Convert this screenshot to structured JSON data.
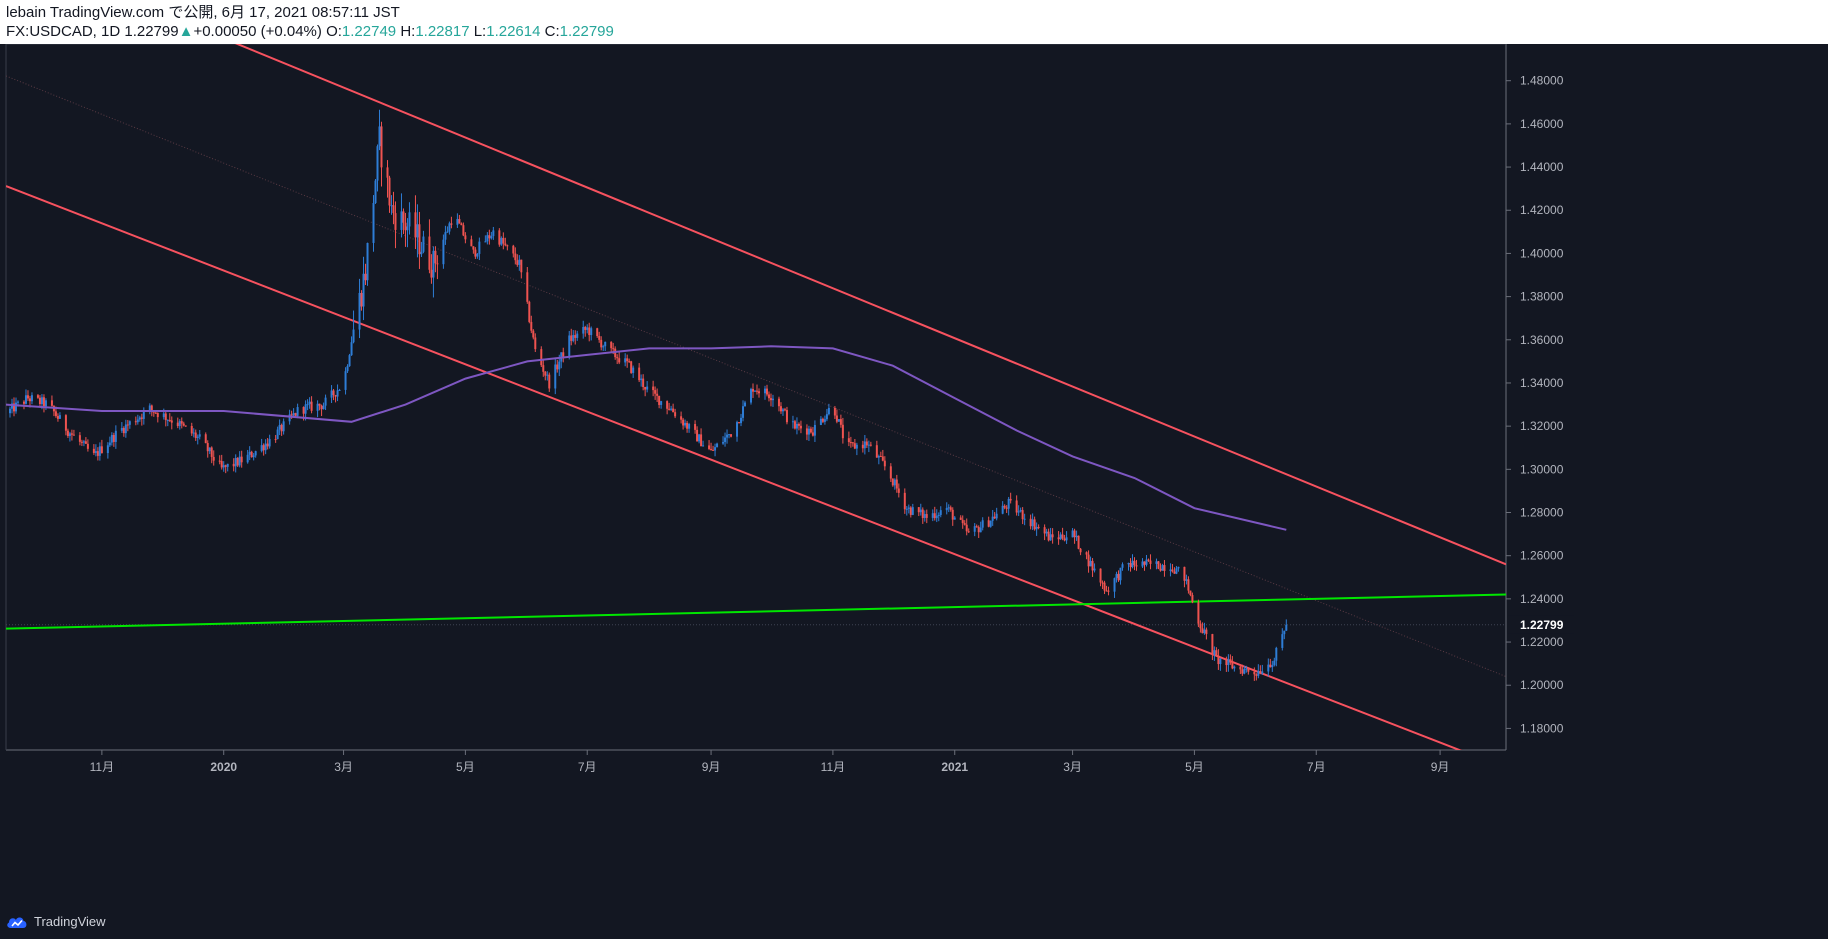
{
  "header": {
    "line1": "lebain TradingView.com で公開, 6月 17, 2021 08:57:11 JST",
    "symbol": "FX:USDCAD, 1D",
    "last": "1.22799",
    "change": "+0.00050 (+0.04%)",
    "o_label": "O:",
    "o": "1.22749",
    "h_label": "H:",
    "h": "1.22817",
    "l_label": "L:",
    "l": "1.22614",
    "c_label": "C:",
    "c": "1.22799"
  },
  "footer": {
    "brand": "TradingView"
  },
  "colors": {
    "up": "#2e7dd6",
    "down": "#ef5350",
    "channel": "#f7525f",
    "ma": "#7e57c2",
    "support": "#00e600",
    "bg": "#131722"
  },
  "chart_data": {
    "type": "candlestick",
    "y_ticks": [
      "1.48000",
      "1.46000",
      "1.44000",
      "1.42000",
      "1.40000",
      "1.38000",
      "1.36000",
      "1.34000",
      "1.32000",
      "1.30000",
      "1.28000",
      "1.26000",
      "1.24000",
      "1.22000",
      "1.20000",
      "1.18000"
    ],
    "y_range": [
      1.17,
      1.497
    ],
    "x_range": [
      "2019-09-14",
      "2021-10-04"
    ],
    "x_ticks": [
      {
        "label": "11月",
        "date": "2019-11-01"
      },
      {
        "label": "2020",
        "date": "2020-01-01"
      },
      {
        "label": "3月",
        "date": "2020-03-01"
      },
      {
        "label": "5月",
        "date": "2020-05-01"
      },
      {
        "label": "7月",
        "date": "2020-07-01"
      },
      {
        "label": "9月",
        "date": "2020-09-01"
      },
      {
        "label": "11月",
        "date": "2020-11-01"
      },
      {
        "label": "2021",
        "date": "2021-01-01"
      },
      {
        "label": "3月",
        "date": "2021-03-01"
      },
      {
        "label": "5月",
        "date": "2021-05-01"
      },
      {
        "label": "7月",
        "date": "2021-07-01"
      },
      {
        "label": "9月",
        "date": "2021-09-01"
      }
    ],
    "last_price": {
      "value": 1.22799,
      "label": "1.22799"
    },
    "close_path": [
      [
        "2019-09-14",
        1.326
      ],
      [
        "2019-09-25",
        1.333
      ],
      [
        "2019-10-05",
        1.33
      ],
      [
        "2019-10-15",
        1.318
      ],
      [
        "2019-10-28",
        1.306
      ],
      [
        "2019-11-10",
        1.318
      ],
      [
        "2019-11-25",
        1.328
      ],
      [
        "2019-12-08",
        1.322
      ],
      [
        "2019-12-20",
        1.314
      ],
      [
        "2019-12-31",
        1.3
      ],
      [
        "2020-01-12",
        1.305
      ],
      [
        "2020-01-25",
        1.314
      ],
      [
        "2020-02-08",
        1.328
      ],
      [
        "2020-02-20",
        1.33
      ],
      [
        "2020-03-01",
        1.34
      ],
      [
        "2020-03-06",
        1.365
      ],
      [
        "2020-03-12",
        1.392
      ],
      [
        "2020-03-19",
        1.452
      ],
      [
        "2020-03-25",
        1.42
      ],
      [
        "2020-04-05",
        1.41
      ],
      [
        "2020-04-15",
        1.395
      ],
      [
        "2020-04-25",
        1.418
      ],
      [
        "2020-05-05",
        1.4
      ],
      [
        "2020-05-15",
        1.41
      ],
      [
        "2020-05-28",
        1.395
      ],
      [
        "2020-06-05",
        1.355
      ],
      [
        "2020-06-12",
        1.34
      ],
      [
        "2020-06-22",
        1.36
      ],
      [
        "2020-07-01",
        1.365
      ],
      [
        "2020-07-12",
        1.355
      ],
      [
        "2020-07-22",
        1.348
      ],
      [
        "2020-08-01",
        1.336
      ],
      [
        "2020-08-12",
        1.328
      ],
      [
        "2020-08-22",
        1.318
      ],
      [
        "2020-09-01",
        1.308
      ],
      [
        "2020-09-12",
        1.318
      ],
      [
        "2020-09-22",
        1.338
      ],
      [
        "2020-10-02",
        1.334
      ],
      [
        "2020-10-12",
        1.32
      ],
      [
        "2020-10-22",
        1.318
      ],
      [
        "2020-11-01",
        1.33
      ],
      [
        "2020-11-08",
        1.31
      ],
      [
        "2020-11-18",
        1.312
      ],
      [
        "2020-11-28",
        1.3
      ],
      [
        "2020-12-08",
        1.282
      ],
      [
        "2020-12-18",
        1.278
      ],
      [
        "2020-12-28",
        1.282
      ],
      [
        "2021-01-08",
        1.27
      ],
      [
        "2021-01-18",
        1.276
      ],
      [
        "2021-01-28",
        1.284
      ],
      [
        "2021-02-08",
        1.276
      ],
      [
        "2021-02-18",
        1.268
      ],
      [
        "2021-03-01",
        1.27
      ],
      [
        "2021-03-10",
        1.256
      ],
      [
        "2021-03-18",
        1.244
      ],
      [
        "2021-03-28",
        1.256
      ],
      [
        "2021-04-08",
        1.256
      ],
      [
        "2021-04-20",
        1.255
      ],
      [
        "2021-04-26",
        1.25
      ],
      [
        "2021-05-03",
        1.23
      ],
      [
        "2021-05-12",
        1.212
      ],
      [
        "2021-05-22",
        1.208
      ],
      [
        "2021-06-01",
        1.206
      ],
      [
        "2021-06-10",
        1.212
      ],
      [
        "2021-06-16",
        1.228
      ]
    ],
    "series": [
      {
        "type": "moving-average",
        "points": [
          [
            "2019-09-14",
            1.33
          ],
          [
            "2019-11-01",
            1.327
          ],
          [
            "2020-01-01",
            1.327
          ],
          [
            "2020-03-05",
            1.322
          ],
          [
            "2020-04-01",
            1.33
          ],
          [
            "2020-05-01",
            1.342
          ],
          [
            "2020-06-01",
            1.35
          ],
          [
            "2020-07-01",
            1.353
          ],
          [
            "2020-08-01",
            1.356
          ],
          [
            "2020-09-01",
            1.356
          ],
          [
            "2020-10-01",
            1.357
          ],
          [
            "2020-11-01",
            1.356
          ],
          [
            "2020-12-01",
            1.348
          ],
          [
            "2021-01-01",
            1.333
          ],
          [
            "2021-02-01",
            1.318
          ],
          [
            "2021-03-01",
            1.306
          ],
          [
            "2021-04-01",
            1.296
          ],
          [
            "2021-05-01",
            1.282
          ],
          [
            "2021-06-16",
            1.272
          ]
        ]
      },
      {
        "type": "trend-line",
        "name": "channel-upper",
        "from": [
          "2020-01-01",
          1.4996
        ],
        "to": [
          "2021-10-04",
          1.256
        ]
      },
      {
        "type": "trend-line",
        "name": "channel-lower",
        "from": [
          "2019-09-14",
          1.4312
        ],
        "to": [
          "2021-09-14",
          1.1688
        ]
      },
      {
        "type": "trend-line",
        "name": "channel-mid",
        "from": [
          "2019-09-14",
          1.4822
        ],
        "to": [
          "2021-10-04",
          1.204
        ]
      },
      {
        "type": "trend-line",
        "name": "support",
        "from": [
          "2019-09-14",
          1.2262
        ],
        "to": [
          "2021-10-04",
          1.242
        ]
      }
    ]
  }
}
